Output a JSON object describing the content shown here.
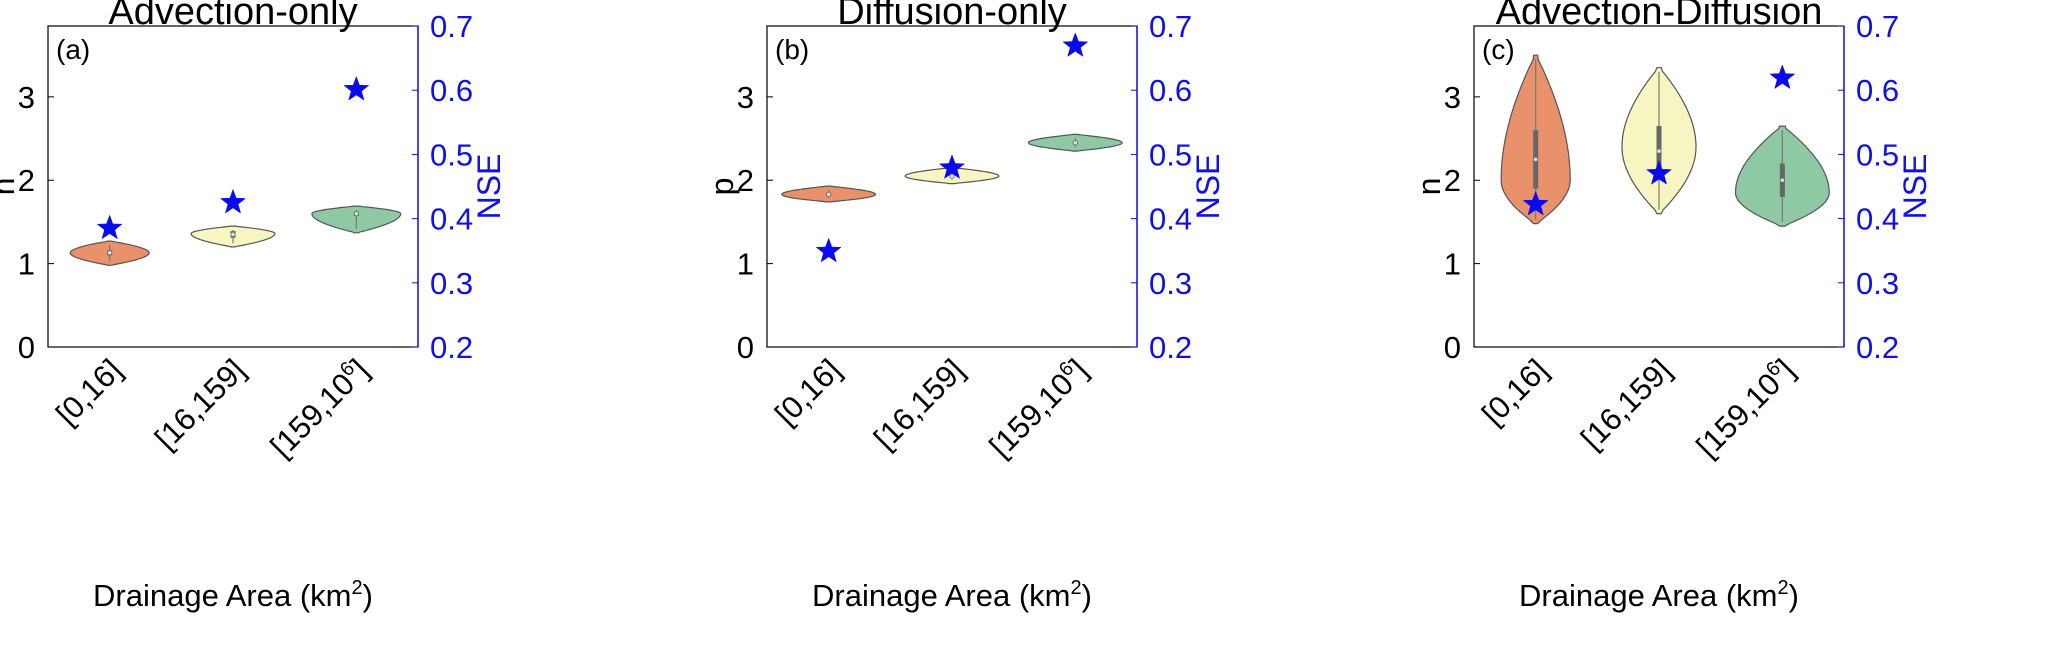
{
  "chart_data": [
    {
      "type": "violin",
      "panel_label": "(a)",
      "title": "Advection-only",
      "left_ylabel": "n",
      "right_ylabel": "NSE",
      "xlabel": "Drainage Area (km",
      "xlabel_sup": "2",
      "xlabel_end": ")",
      "categories": [
        {
          "main": "[0,16]",
          "sup": ""
        },
        {
          "main": "[16,159]",
          "sup": ""
        },
        {
          "main": "[159,10",
          "sup": "6",
          "end": "]"
        }
      ],
      "left_ylim": [
        0,
        3.85
      ],
      "left_yticks": [
        "0",
        "1",
        "2",
        "3"
      ],
      "right_ylim": [
        0.2,
        0.7
      ],
      "right_yticks": [
        "0.2",
        "0.3",
        "0.4",
        "0.5",
        "0.6",
        "0.7"
      ],
      "violins": [
        {
          "center": 1.13,
          "min": 0.98,
          "max": 1.27,
          "q1": 1.1,
          "q3": 1.16,
          "max_halfwidth": 0.32,
          "color": "#e8916a",
          "peak": 1.13
        },
        {
          "center": 1.35,
          "min": 1.2,
          "max": 1.45,
          "q1": 1.31,
          "q3": 1.39,
          "max_halfwidth": 0.34,
          "color": "#f7f6c2",
          "peak": 1.36
        },
        {
          "center": 1.6,
          "min": 1.37,
          "max": 1.69,
          "q1": 1.57,
          "q3": 1.62,
          "max_halfwidth": 0.36,
          "color": "#8fc9a3",
          "peak": 1.6
        }
      ],
      "nse": [
        0.385,
        0.425,
        0.601
      ]
    },
    {
      "type": "violin",
      "panel_label": "(b)",
      "title": "Diffusion-only",
      "left_ylabel": "p",
      "right_ylabel": "NSE",
      "xlabel": "Drainage Area (km",
      "xlabel_sup": "2",
      "xlabel_end": ")",
      "categories": [
        {
          "main": "[0,16]",
          "sup": ""
        },
        {
          "main": "[16,159]",
          "sup": ""
        },
        {
          "main": "[159,10",
          "sup": "6",
          "end": "]"
        }
      ],
      "left_ylim": [
        0,
        3.85
      ],
      "left_yticks": [
        "0",
        "1",
        "2",
        "3"
      ],
      "right_ylim": [
        0.2,
        0.7
      ],
      "right_yticks": [
        "0.2",
        "0.3",
        "0.4",
        "0.5",
        "0.6",
        "0.7"
      ],
      "violins": [
        {
          "center": 1.83,
          "min": 1.74,
          "max": 1.93,
          "q1": 1.81,
          "q3": 1.85,
          "max_halfwidth": 0.38,
          "color": "#e8916a",
          "peak": 1.83
        },
        {
          "center": 2.05,
          "min": 1.96,
          "max": 2.15,
          "q1": 2.03,
          "q3": 2.07,
          "max_halfwidth": 0.38,
          "color": "#f7f6c2",
          "peak": 2.05
        },
        {
          "center": 2.45,
          "min": 2.35,
          "max": 2.55,
          "q1": 2.43,
          "q3": 2.47,
          "max_halfwidth": 0.38,
          "color": "#8fc9a3",
          "peak": 2.45
        }
      ],
      "nse": [
        0.349,
        0.479,
        0.669
      ]
    },
    {
      "type": "violin",
      "panel_label": "(c)",
      "title": "Advection-Diffusion",
      "left_ylabel": "n",
      "right_ylabel": "NSE",
      "xlabel": "Drainage Area (km",
      "xlabel_sup": "2",
      "xlabel_end": ")",
      "categories": [
        {
          "main": "[0,16]",
          "sup": ""
        },
        {
          "main": "[16,159]",
          "sup": ""
        },
        {
          "main": "[159,10",
          "sup": "6",
          "end": "]"
        }
      ],
      "left_ylim": [
        0,
        3.85
      ],
      "left_yticks": [
        "0",
        "1",
        "2",
        "3"
      ],
      "right_ylim": [
        0.2,
        0.7
      ],
      "right_yticks": [
        "0.2",
        "0.3",
        "0.4",
        "0.5",
        "0.6",
        "0.7"
      ],
      "violins": [
        {
          "center": 2.25,
          "min": 1.48,
          "max": 3.5,
          "q1": 1.9,
          "q3": 2.6,
          "max_halfwidth": 0.28,
          "color": "#e8916a",
          "peak": 2.0
        },
        {
          "center": 2.35,
          "min": 1.6,
          "max": 3.35,
          "q1": 2.05,
          "q3": 2.65,
          "max_halfwidth": 0.3,
          "color": "#f7f6c2",
          "peak": 2.4
        },
        {
          "center": 2.0,
          "min": 1.45,
          "max": 2.65,
          "q1": 1.8,
          "q3": 2.2,
          "max_halfwidth": 0.38,
          "color": "#8fc9a3",
          "peak": 1.85
        }
      ],
      "nse": [
        0.422,
        0.47,
        0.619
      ]
    }
  ]
}
